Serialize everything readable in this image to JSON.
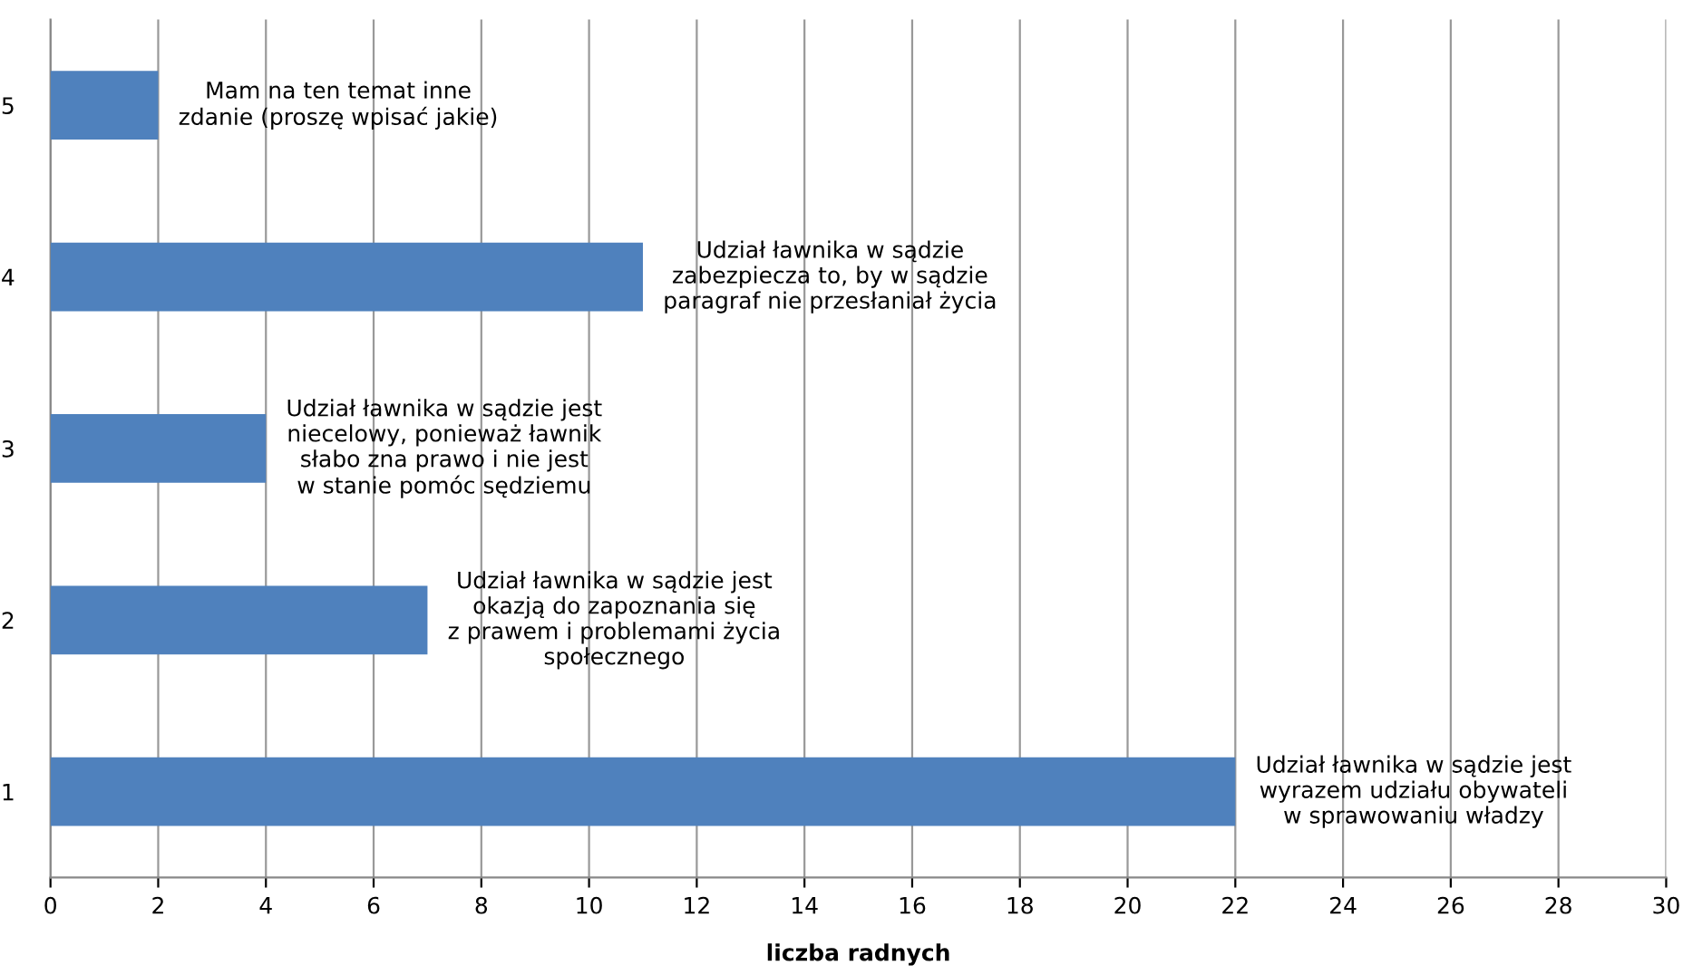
{
  "chart_data": {
    "type": "bar",
    "orientation": "horizontal",
    "color": "#4f81bd",
    "categories": [
      "5",
      "4",
      "3",
      "2",
      "1"
    ],
    "values": [
      2,
      11,
      4,
      7,
      22
    ],
    "xlabel": "liczba radnych",
    "xlim": [
      0,
      30
    ],
    "xticks": [
      0,
      2,
      4,
      6,
      8,
      10,
      12,
      14,
      16,
      18,
      20,
      22,
      24,
      26,
      28,
      30
    ],
    "grid": "x",
    "legend": false,
    "annotations": [
      {
        "text": "Mam na ten temat inne\nzdanie (proszę wpisać jakie)",
        "x": 2,
        "y": "5"
      },
      {
        "text": "Udział ławnika w sądzie\nzabezpiecza to, by w sądzie\nparagraf nie przesłaniał życia",
        "x": 11,
        "y": "4"
      },
      {
        "text": "Udział ławnika w sądzie jest\nniecelowy, ponieważ ławnik\nsłabo zna prawo i nie jest\nw stanie pomóc sędziemu",
        "x": 4,
        "y": "3"
      },
      {
        "text": "Udział ławnika w sądzie jest\nokazją do zapoznania się\nz prawem i problemami życia\nspołecznego",
        "x": 7,
        "y": "2"
      },
      {
        "text": "Udział ławnika w sądzie jest\nwyrazem udziału obywateli\nw sprawowaniu władzy",
        "x": 22,
        "y": "1"
      }
    ]
  }
}
